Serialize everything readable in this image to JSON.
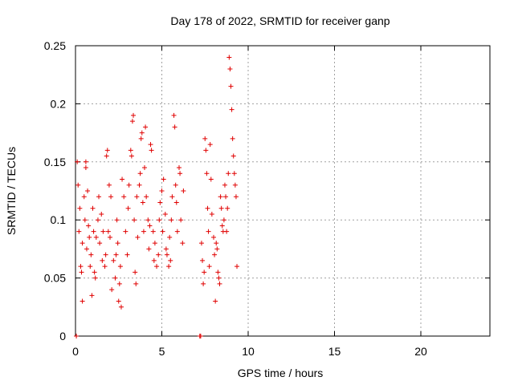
{
  "chart_data": {
    "type": "scatter",
    "title": "Day 178 of 2022, SRMTID for receiver ganp",
    "xlabel": "GPS time / hours",
    "ylabel": "SRMTID / TECUs",
    "xlim": [
      0,
      24
    ],
    "ylim": [
      0,
      0.25
    ],
    "xticks": [
      0,
      5,
      10,
      15,
      20
    ],
    "xtick_labels": [
      "0",
      "5",
      "10",
      "15",
      "20"
    ],
    "yticks": [
      0,
      0.05,
      0.1,
      0.15,
      0.2,
      0.25
    ],
    "ytick_labels": [
      "0",
      "0.05",
      "0.1",
      "0.15",
      "0.2",
      "0.25"
    ],
    "grid": true,
    "marker": "plus",
    "color": "#e00000",
    "series": [
      {
        "name": "SRMTID",
        "points": [
          [
            0.05,
            0.0
          ],
          [
            0.1,
            0.15
          ],
          [
            0.15,
            0.13
          ],
          [
            0.2,
            0.09
          ],
          [
            0.25,
            0.11
          ],
          [
            0.3,
            0.06
          ],
          [
            0.35,
            0.055
          ],
          [
            0.4,
            0.08
          ],
          [
            0.4,
            0.03
          ],
          [
            0.5,
            0.12
          ],
          [
            0.55,
            0.1
          ],
          [
            0.6,
            0.145
          ],
          [
            0.6,
            0.15
          ],
          [
            0.65,
            0.075
          ],
          [
            0.7,
            0.125
          ],
          [
            0.75,
            0.095
          ],
          [
            0.8,
            0.085
          ],
          [
            0.85,
            0.06
          ],
          [
            0.9,
            0.07
          ],
          [
            0.95,
            0.035
          ],
          [
            1.0,
            0.11
          ],
          [
            1.05,
            0.09
          ],
          [
            1.1,
            0.055
          ],
          [
            1.15,
            0.05
          ],
          [
            1.2,
            0.085
          ],
          [
            1.3,
            0.1
          ],
          [
            1.35,
            0.12
          ],
          [
            1.4,
            0.08
          ],
          [
            1.5,
            0.105
          ],
          [
            1.55,
            0.065
          ],
          [
            1.6,
            0.09
          ],
          [
            1.7,
            0.06
          ],
          [
            1.75,
            0.07
          ],
          [
            1.8,
            0.155
          ],
          [
            1.85,
            0.16
          ],
          [
            1.9,
            0.09
          ],
          [
            1.95,
            0.13
          ],
          [
            2.0,
            0.085
          ],
          [
            2.05,
            0.12
          ],
          [
            2.1,
            0.04
          ],
          [
            2.2,
            0.065
          ],
          [
            2.3,
            0.05
          ],
          [
            2.35,
            0.07
          ],
          [
            2.4,
            0.1
          ],
          [
            2.45,
            0.08
          ],
          [
            2.5,
            0.03
          ],
          [
            2.55,
            0.045
          ],
          [
            2.6,
            0.06
          ],
          [
            2.65,
            0.025
          ],
          [
            2.7,
            0.135
          ],
          [
            2.8,
            0.12
          ],
          [
            2.9,
            0.09
          ],
          [
            3.0,
            0.07
          ],
          [
            3.05,
            0.11
          ],
          [
            3.1,
            0.13
          ],
          [
            3.2,
            0.16
          ],
          [
            3.25,
            0.155
          ],
          [
            3.3,
            0.185
          ],
          [
            3.35,
            0.19
          ],
          [
            3.4,
            0.1
          ],
          [
            3.45,
            0.055
          ],
          [
            3.5,
            0.045
          ],
          [
            3.55,
            0.12
          ],
          [
            3.6,
            0.085
          ],
          [
            3.7,
            0.13
          ],
          [
            3.75,
            0.14
          ],
          [
            3.8,
            0.17
          ],
          [
            3.85,
            0.175
          ],
          [
            3.9,
            0.115
          ],
          [
            3.95,
            0.09
          ],
          [
            4.0,
            0.145
          ],
          [
            4.05,
            0.18
          ],
          [
            4.1,
            0.12
          ],
          [
            4.2,
            0.1
          ],
          [
            4.25,
            0.075
          ],
          [
            4.3,
            0.095
          ],
          [
            4.35,
            0.165
          ],
          [
            4.4,
            0.16
          ],
          [
            4.5,
            0.09
          ],
          [
            4.55,
            0.065
          ],
          [
            4.6,
            0.08
          ],
          [
            4.7,
            0.06
          ],
          [
            4.8,
            0.07
          ],
          [
            4.85,
            0.1
          ],
          [
            4.9,
            0.115
          ],
          [
            5.0,
            0.125
          ],
          [
            5.05,
            0.09
          ],
          [
            5.1,
            0.135
          ],
          [
            5.2,
            0.105
          ],
          [
            5.25,
            0.075
          ],
          [
            5.3,
            0.07
          ],
          [
            5.4,
            0.06
          ],
          [
            5.45,
            0.085
          ],
          [
            5.5,
            0.065
          ],
          [
            5.55,
            0.1
          ],
          [
            5.6,
            0.12
          ],
          [
            5.7,
            0.19
          ],
          [
            5.75,
            0.18
          ],
          [
            5.8,
            0.13
          ],
          [
            5.85,
            0.115
          ],
          [
            5.9,
            0.09
          ],
          [
            6.0,
            0.145
          ],
          [
            6.05,
            0.14
          ],
          [
            6.1,
            0.1
          ],
          [
            6.2,
            0.08
          ],
          [
            6.25,
            0.125
          ],
          [
            7.2,
            0.0
          ],
          [
            7.25,
            0.0
          ],
          [
            7.3,
            0.08
          ],
          [
            7.35,
            0.065
          ],
          [
            7.4,
            0.045
          ],
          [
            7.45,
            0.055
          ],
          [
            7.5,
            0.17
          ],
          [
            7.55,
            0.16
          ],
          [
            7.6,
            0.14
          ],
          [
            7.65,
            0.11
          ],
          [
            7.7,
            0.09
          ],
          [
            7.75,
            0.06
          ],
          [
            7.8,
            0.165
          ],
          [
            7.85,
            0.135
          ],
          [
            7.9,
            0.105
          ],
          [
            8.0,
            0.085
          ],
          [
            8.05,
            0.07
          ],
          [
            8.1,
            0.03
          ],
          [
            8.15,
            0.08
          ],
          [
            8.2,
            0.075
          ],
          [
            8.25,
            0.055
          ],
          [
            8.3,
            0.05
          ],
          [
            8.35,
            0.045
          ],
          [
            8.4,
            0.12
          ],
          [
            8.45,
            0.11
          ],
          [
            8.5,
            0.095
          ],
          [
            8.55,
            0.09
          ],
          [
            8.6,
            0.1
          ],
          [
            8.65,
            0.13
          ],
          [
            8.7,
            0.12
          ],
          [
            8.75,
            0.09
          ],
          [
            8.8,
            0.11
          ],
          [
            8.85,
            0.14
          ],
          [
            8.9,
            0.24
          ],
          [
            8.95,
            0.23
          ],
          [
            9.0,
            0.215
          ],
          [
            9.05,
            0.195
          ],
          [
            9.1,
            0.17
          ],
          [
            9.15,
            0.155
          ],
          [
            9.2,
            0.14
          ],
          [
            9.25,
            0.13
          ],
          [
            9.3,
            0.12
          ],
          [
            9.35,
            0.06
          ]
        ]
      }
    ]
  }
}
